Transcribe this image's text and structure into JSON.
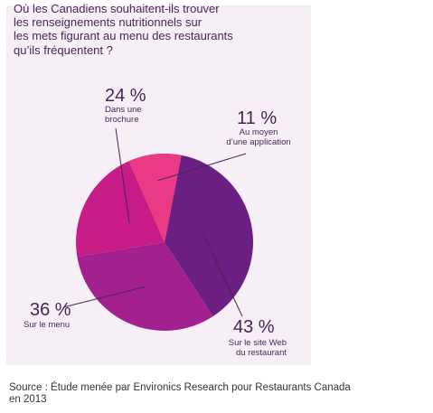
{
  "chart_data": {
    "type": "pie",
    "title": "Où les Canadiens souhaitent-ils trouver\nles renseignements nutritionnels sur\nles mets figurant au menu des restaurants\nqu’ils fréquentent ?",
    "slices": [
      {
        "pct_label": "43 %",
        "value": 43,
        "label": "Sur le site Web\ndu restaurant",
        "color": "#6b1f82"
      },
      {
        "pct_label": "36 %",
        "value": 36,
        "label": "Sur le menu",
        "color": "#a3208f"
      },
      {
        "pct_label": "24 %",
        "value": 24,
        "label": "Dans une\nbrochure",
        "color": "#c71c86"
      },
      {
        "pct_label": "11 %",
        "value": 11,
        "label": "Au moyen\nd’une application",
        "color": "#ea3a86"
      }
    ],
    "leader_color": "#4a2455"
  },
  "source": "Source : Étude menée par Environics Research pour Restaurants Canada\nen 2013"
}
